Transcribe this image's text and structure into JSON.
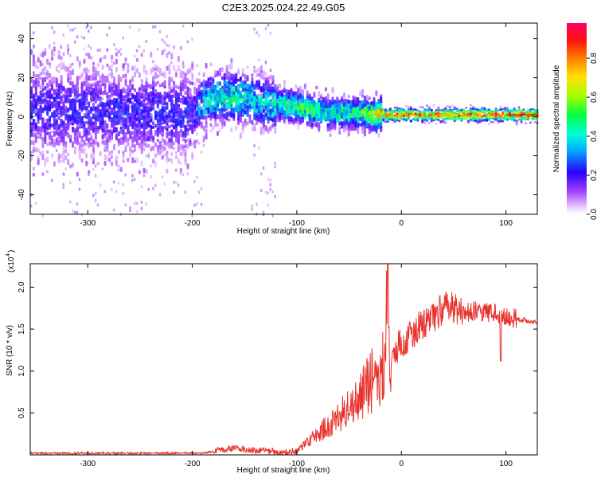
{
  "title": "C2E3.2025.024.22.49.G05",
  "colors": {
    "snr_line": "#e8322c",
    "axis": "#000000",
    "cmap_low": "#ffffff",
    "cmap_high": "#ff0066"
  },
  "chart_data": [
    {
      "type": "heatmap",
      "title": "C2E3.2025.024.22.49.G05",
      "xlabel": "Height of straight line (km)",
      "ylabel": "Frequency (Hz)",
      "xlim": [
        -355,
        130
      ],
      "ylim": [
        -50,
        48
      ],
      "xticks": [
        -300,
        -200,
        -100,
        0,
        100
      ],
      "yticks": [
        -40,
        -20,
        0,
        20,
        40
      ],
      "xtick_labels": [
        "-300",
        "-200",
        "-100",
        "0",
        "100"
      ],
      "ytick_labels": [
        "-40",
        "-20",
        "0",
        "20",
        "40"
      ],
      "colorbar": {
        "label": "Normalized spectral amplitude",
        "range": [
          0,
          0.98
        ],
        "ticks": [
          0.0,
          0.2,
          0.4,
          0.6,
          0.8
        ],
        "tick_labels": [
          "0.0",
          "0.2",
          "0.4",
          "0.6",
          "0.8"
        ],
        "colormap": "rainbow (white → purple → blue → cyan → green → yellow → red → magenta)"
      },
      "ridge": {
        "x": [
          -355,
          -300,
          -250,
          -200,
          -190,
          -175,
          -160,
          -145,
          -130,
          -115,
          -100,
          -85,
          -70,
          -55,
          -40,
          -30,
          -20,
          0,
          50,
          100,
          130
        ],
        "freq": [
          3,
          3,
          2,
          2,
          8,
          10,
          10,
          9,
          7,
          6,
          5,
          3,
          2,
          2,
          2,
          1,
          1,
          1,
          1,
          1,
          1
        ],
        "peak_amplitude": [
          0.25,
          0.25,
          0.25,
          0.25,
          0.45,
          0.5,
          0.5,
          0.45,
          0.45,
          0.5,
          0.55,
          0.55,
          0.5,
          0.5,
          0.55,
          0.6,
          0.85,
          0.9,
          0.9,
          0.9,
          0.95
        ]
      }
    },
    {
      "type": "line",
      "xlabel": "Height of straight line (km)",
      "ylabel": "SNR (10 * v/v)",
      "y_multiplier": "(x10",
      "y_multiplier_exp": "4",
      "xlim": [
        -355,
        130
      ],
      "ylim": [
        0,
        2.28
      ],
      "xticks": [
        -300,
        -200,
        -100,
        0,
        100
      ],
      "yticks": [
        0.5,
        1.0,
        1.5,
        2.0
      ],
      "xtick_labels": [
        "-300",
        "-200",
        "-100",
        "0",
        "100"
      ],
      "ytick_labels": [
        "0.5",
        "1.0",
        "1.5",
        "2.0"
      ],
      "series": [
        {
          "color": "#e8322c",
          "x": [
            -355,
            -300,
            -250,
            -200,
            -190,
            -180,
            -170,
            -160,
            -150,
            -140,
            -130,
            -120,
            -110,
            -100,
            -90,
            -80,
            -70,
            -60,
            -50,
            -40,
            -30,
            -20,
            -15,
            -13,
            -11,
            -8,
            0,
            10,
            20,
            30,
            40,
            50,
            60,
            70,
            80,
            90,
            100,
            110,
            120,
            130
          ],
          "y": [
            0.02,
            0.02,
            0.02,
            0.02,
            0.02,
            0.04,
            0.06,
            0.08,
            0.07,
            0.06,
            0.05,
            0.04,
            0.03,
            0.05,
            0.15,
            0.25,
            0.35,
            0.45,
            0.55,
            0.7,
            0.85,
            1.0,
            1.15,
            2.28,
            0.8,
            1.2,
            1.35,
            1.45,
            1.55,
            1.65,
            1.75,
            1.75,
            1.7,
            1.72,
            1.7,
            1.68,
            1.66,
            1.62,
            1.6,
            1.58
          ]
        }
      ]
    }
  ]
}
